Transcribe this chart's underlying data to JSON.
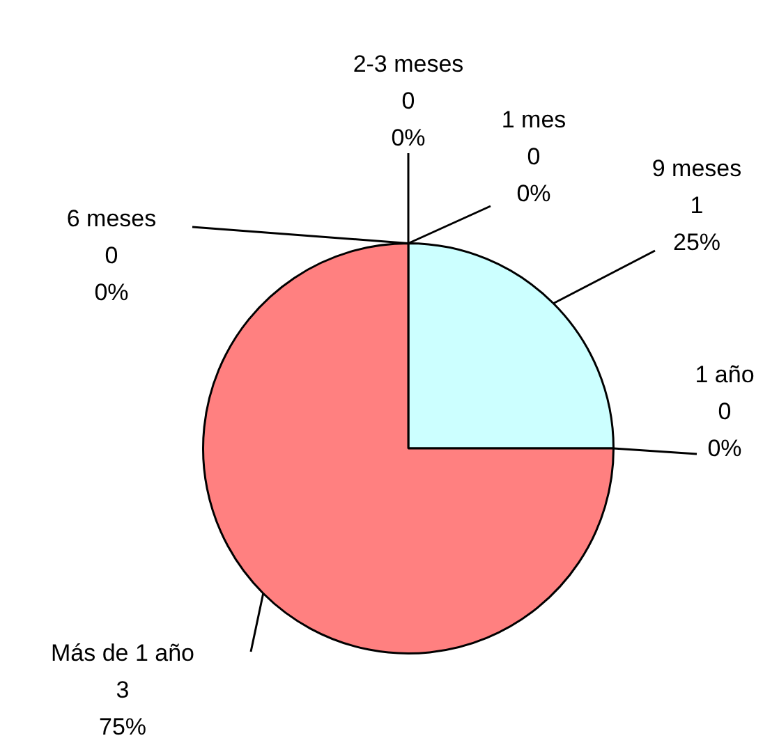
{
  "chart_data": {
    "type": "pie",
    "categories": [
      "1 mes",
      "9 meses",
      "1 año",
      "Más de 1 año",
      "6 meses",
      "2-3 meses"
    ],
    "values": [
      0,
      1,
      0,
      3,
      0,
      0
    ],
    "colors": [
      "#99ccff",
      "#ccffff",
      "#ffff99",
      "#ff8080",
      "#cc99ff",
      "#ffcc99"
    ],
    "value_labels": [
      "0\n0%",
      "1\n25%",
      "0\n0%",
      "3\n75%",
      "0\n0%",
      "0\n0%"
    ],
    "legend": false
  }
}
